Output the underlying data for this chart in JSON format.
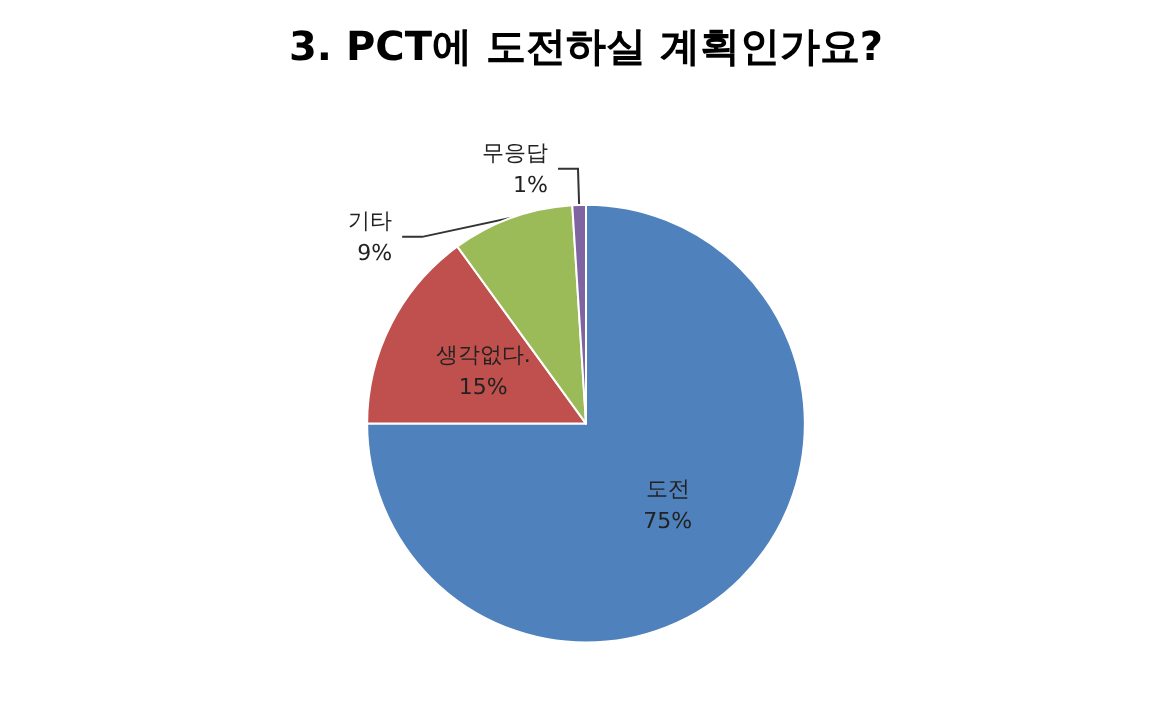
{
  "chart_data": {
    "type": "pie",
    "title": "3. PCT에 도전하실 계획인가요?",
    "categories": [
      "도전",
      "생각없다.",
      "기타",
      "무응답"
    ],
    "values": [
      75,
      15,
      9,
      1
    ],
    "colors": [
      "#4f81bd",
      "#c0504d",
      "#9bbb59",
      "#8064a2"
    ],
    "value_labels": [
      "75%",
      "15%",
      "9%",
      "1%"
    ],
    "legend": false
  }
}
